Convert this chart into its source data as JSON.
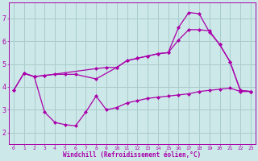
{
  "background_color": "#cce8e8",
  "grid_color": "#aacccc",
  "line_color": "#aa00aa",
  "marker_color": "#aa00aa",
  "xlabel": "Windchill (Refroidissement éolien,°C)",
  "xlabel_color": "#aa00aa",
  "tick_color": "#aa00aa",
  "spine_color": "#aa00aa",
  "xlim": [
    -0.5,
    23.5
  ],
  "ylim": [
    1.5,
    7.7
  ],
  "yticks": [
    2,
    3,
    4,
    5,
    6,
    7
  ],
  "xticks": [
    0,
    1,
    2,
    3,
    4,
    5,
    6,
    7,
    8,
    9,
    10,
    11,
    12,
    13,
    14,
    15,
    16,
    17,
    18,
    19,
    20,
    21,
    22,
    23
  ],
  "line1_x": [
    0,
    1,
    2,
    3,
    4,
    5,
    6,
    8,
    10,
    11,
    12,
    13,
    14,
    15,
    16,
    17,
    18,
    19,
    20,
    21,
    22,
    23
  ],
  "line1_y": [
    3.85,
    4.6,
    4.45,
    4.5,
    4.55,
    4.55,
    4.55,
    4.35,
    4.85,
    5.15,
    5.25,
    5.35,
    5.45,
    5.5,
    6.05,
    6.5,
    6.5,
    6.45,
    5.85,
    5.1,
    3.85,
    3.8
  ],
  "line2_x": [
    0,
    1,
    2,
    3,
    4,
    5,
    6,
    7,
    8,
    9,
    10,
    11,
    12,
    13,
    14,
    15,
    16,
    17,
    18,
    19,
    20,
    21,
    22,
    23
  ],
  "line2_y": [
    3.85,
    4.6,
    4.45,
    2.9,
    2.45,
    2.35,
    2.3,
    2.9,
    3.6,
    3.0,
    3.1,
    3.3,
    3.4,
    3.5,
    3.55,
    3.6,
    3.65,
    3.7,
    3.8,
    3.85,
    3.9,
    3.95,
    3.8,
    3.8
  ],
  "line3_x": [
    1,
    2,
    3,
    8,
    9,
    10,
    11,
    12,
    13,
    14,
    15,
    16,
    17,
    18,
    19,
    20,
    21,
    22,
    23
  ],
  "line3_y": [
    4.6,
    4.45,
    4.5,
    4.8,
    4.85,
    4.85,
    5.15,
    5.25,
    5.35,
    5.45,
    5.5,
    6.6,
    7.25,
    7.2,
    6.4,
    5.85,
    5.1,
    3.85,
    3.8
  ]
}
